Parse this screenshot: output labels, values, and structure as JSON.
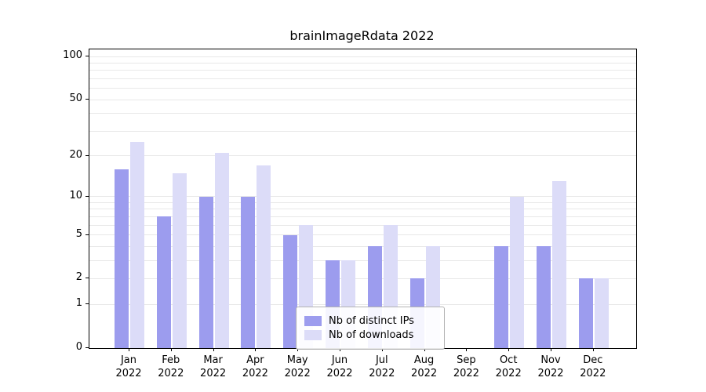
{
  "title": "brainImageRdata 2022",
  "chart_data": {
    "type": "bar",
    "title": "brainImageRdata 2022",
    "xlabel": "",
    "ylabel": "",
    "scale": "log1p",
    "ylim": [
      0,
      112
    ],
    "yticks": [
      100,
      50,
      20,
      10,
      5,
      2,
      1,
      0
    ],
    "grid": "horizontal-minor-log",
    "legend_position": "lower center",
    "categories": [
      {
        "month": "Jan",
        "year": "2022"
      },
      {
        "month": "Feb",
        "year": "2022"
      },
      {
        "month": "Mar",
        "year": "2022"
      },
      {
        "month": "Apr",
        "year": "2022"
      },
      {
        "month": "May",
        "year": "2022"
      },
      {
        "month": "Jun",
        "year": "2022"
      },
      {
        "month": "Jul",
        "year": "2022"
      },
      {
        "month": "Aug",
        "year": "2022"
      },
      {
        "month": "Sep",
        "year": "2022"
      },
      {
        "month": "Oct",
        "year": "2022"
      },
      {
        "month": "Nov",
        "year": "2022"
      },
      {
        "month": "Dec",
        "year": "2022"
      }
    ],
    "series": [
      {
        "name": "Nb of distinct IPs",
        "color": "#9c9cee",
        "values": [
          16,
          7,
          10,
          10,
          5,
          3,
          4,
          2,
          0,
          4,
          4,
          2
        ]
      },
      {
        "name": "Nb of downloads",
        "color": "#dcdcf8",
        "values": [
          25,
          15,
          21,
          17,
          6,
          3,
          6,
          4,
          0,
          10,
          13,
          2
        ]
      }
    ]
  }
}
